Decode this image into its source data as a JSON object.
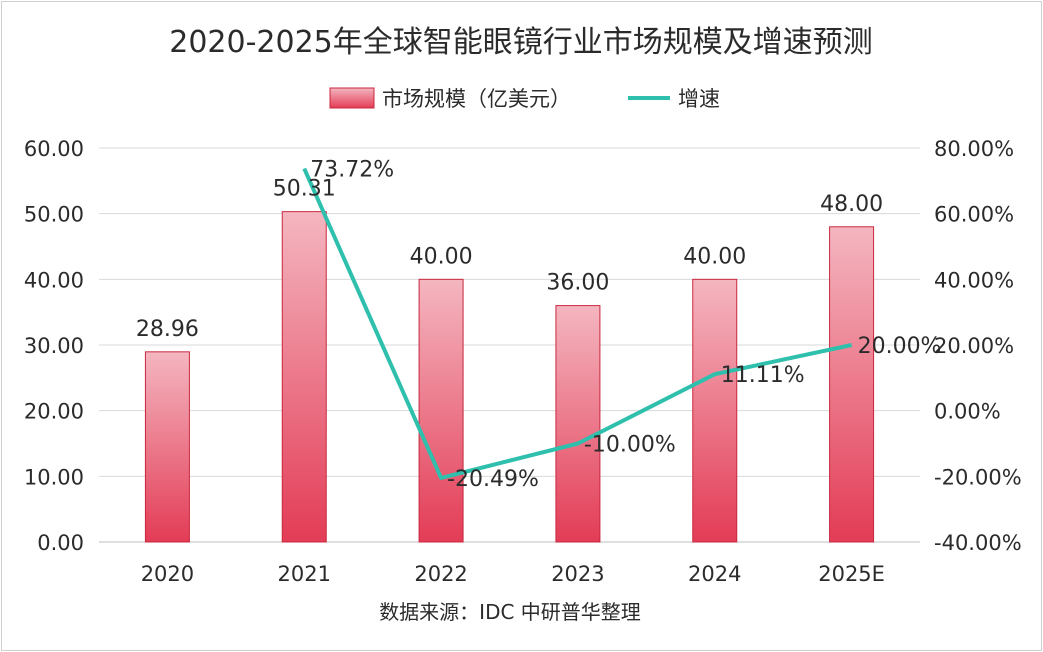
{
  "chart_data": {
    "type": "bar+line",
    "title": "2020-2025年全球智能眼镜行业市场规模及增速预测",
    "categories": [
      "2020",
      "2021",
      "2022",
      "2023",
      "2024",
      "2025E"
    ],
    "series": [
      {
        "name": "市场规模（亿美元）",
        "type": "bar",
        "axis": "left",
        "values": [
          28.96,
          50.31,
          40.0,
          36.0,
          40.0,
          48.0
        ],
        "labels": [
          "28.96",
          "50.31",
          "40.00",
          "36.00",
          "40.00",
          "48.00"
        ]
      },
      {
        "name": "增速",
        "type": "line",
        "axis": "right",
        "values": [
          null,
          73.72,
          -20.49,
          -10.0,
          11.11,
          20.0
        ],
        "labels": [
          "",
          "73.72%",
          "-20.49%",
          "-10.00%",
          "11.11%",
          "20.00%"
        ]
      }
    ],
    "y_left": {
      "min": 0,
      "max": 60,
      "ticks": [
        "0.00",
        "10.00",
        "20.00",
        "30.00",
        "40.00",
        "50.00",
        "60.00"
      ]
    },
    "y_right": {
      "min": -40,
      "max": 80,
      "ticks": [
        "-40.00%",
        "-20.00%",
        "0.00%",
        "20.00%",
        "40.00%",
        "60.00%",
        "80.00%"
      ]
    },
    "grid": true,
    "legend_position": "top",
    "source": "数据来源：IDC  中研普华整理",
    "colors": {
      "bar_top": "#f4b6c0",
      "bar_bottom": "#e33c56",
      "bar_edge": "#c8283f",
      "line": "#2fbfad",
      "grid": "#d9d9d9"
    }
  }
}
